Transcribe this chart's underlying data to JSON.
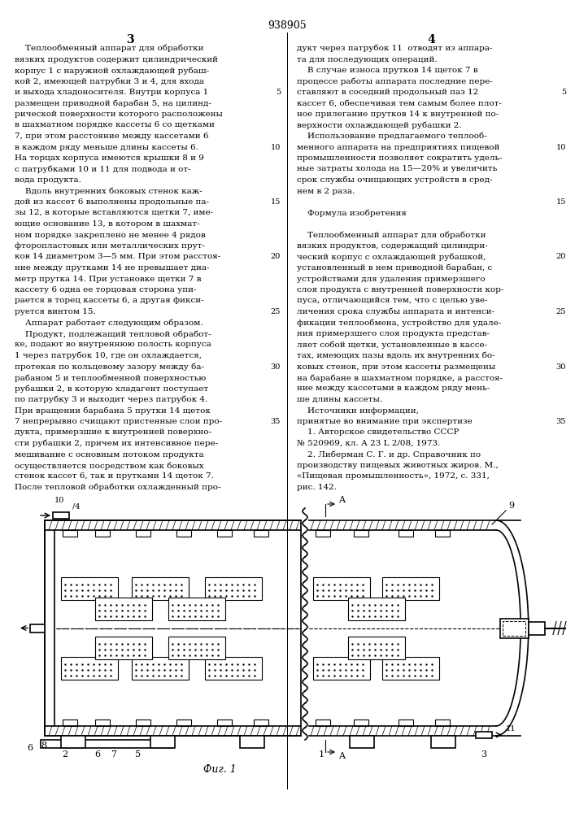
{
  "page_number": "938905",
  "col_left": "3",
  "col_right": "4",
  "bg_color": "#ffffff",
  "text_color": "#000000",
  "fig_caption": "Фиг. 1",
  "left_text": [
    "    Теплообменный аппарат для обработки",
    "вязких продуктов содержит цилиндрический",
    "корпус 1 с наружной охлаждающей рубаш-",
    "кой 2, имеющей патрубки 3 и 4, для входа",
    "и выхода хладоносителя. Внутри корпуса 1",
    "размещен приводной барабан 5, на цилинд-",
    "рической поверхности которого расположены",
    "в шахматном порядке кассеты 6 со щетками",
    "7, при этом расстояние между кассетами 6",
    "в каждом ряду меньше длины кассеты 6.",
    "На торцах корпуса имеются крышки 8 и 9",
    "с патрубками 10 и 11 для подвода и от-",
    "вода продукта.",
    "    Вдоль внутренних боковых стенок каж-",
    "дой из кассет 6 выполнены продольные па-",
    "зы 12, в которые вставляются щетки 7, име-",
    "ющие основание 13, в котором в шахмат-",
    "ном порядке закреплено не менее 4 рядов",
    "фторопластовых или металлических прут-",
    "ков 14 диаметром 3—5 мм. При этом расстоя-",
    "ние между прутками 14 не превышает диа-",
    "метр прутка 14. При установке щетки 7 в",
    "кассету 6 одна ее торцовая сторона упи-",
    "рается в торец кассеты 6, а другая фикси-",
    "руется винтом 15.",
    "    Аппарат работает следующим образом.",
    "    Продукт, подлежащий тепловой обработ-",
    "ке, подают во внутреннюю полость корпуса",
    "1 через патрубок 10, где он охлаждается,",
    "протекая по кольцевому зазору между ба-",
    "рабаном 5 и теплообменной поверхностью",
    "рубашки 2, в которую хладагент поступает",
    "по патрубку 3 и выходит через патрубок 4.",
    "При вращении барабана 5 прутки 14 щеток",
    "7 непрерывно счищают пристенные слои про-",
    "дукта, примерзшие к внутренней поверхно-",
    "сти рубашки 2, причем их интенсивное пере-",
    "мешивание с основным потоком продукта",
    "осуществляется посредством как боковых",
    "стенок кассет 6, так и прутками 14 щеток 7.",
    "После тепловой обработки охлажденный про-"
  ],
  "right_text": [
    "дукт через патрубок 11  отводят из аппара-",
    "та для последующих операций.",
    "    В случае износа прутков 14 щеток 7 в",
    "процессе работы аппарата последние пере-",
    "ставляют в соседний продольный паз 12",
    "кассет 6, обеспечивая тем самым более плот-",
    "ное прилегание прутков 14 к внутренней по-",
    "верхности охлаждающей рубашки 2.",
    "    Использование предлагаемого теплооб-",
    "менного аппарата на предприятиях пищевой",
    "промышленности позволяет сократить удель-",
    "ные затраты холода на 15—20% и увеличить",
    "срок службы очищающих устройств в сред-",
    "нем в 2 раза.",
    "",
    "    Формула изобретения",
    "",
    "    Теплообменный аппарат для обработки",
    "вязких продуктов, содержащий цилиндри-",
    "ческий корпус с охлаждающей рубашкой,",
    "установленный в нем приводной барабан, с",
    "устройствами для удаления примерзшего",
    "слоя продукта с внутренней поверхности кор-",
    "пуса, отличающийся тем, что с целью уве-",
    "личения срока службы аппарата и интенси-",
    "фикации теплообмена, устройство для удале-",
    "ния примерзшего слоя продукта представ-",
    "ляет собой щетки, установленные в кассе-",
    "тах, имеющих пазы вдоль их внутренних бо-",
    "ковых стенок, при этом кассеты размещены",
    "на барабане в шахматном порядке, а расстоя-",
    "ние между кассетами в каждом ряду мень-",
    "ше длины кассеты.",
    "    Источники информации,",
    "принятые во внимание при экспертизе",
    "    1. Авторское свидетельство СССР",
    "№ 520969, кл. А 23 L 2/08, 1973.",
    "    2. Либерман С. Г. и др. Справочник по",
    "производству пищевых животных жиров. М.,",
    "«Пищевая промышленность», 1972, с. 331,",
    "рис. 142."
  ],
  "line_numbers_left": [
    5,
    10,
    15,
    20,
    25,
    30,
    35
  ],
  "line_numbers_right": [
    5,
    10,
    15,
    20,
    25,
    30,
    35
  ]
}
